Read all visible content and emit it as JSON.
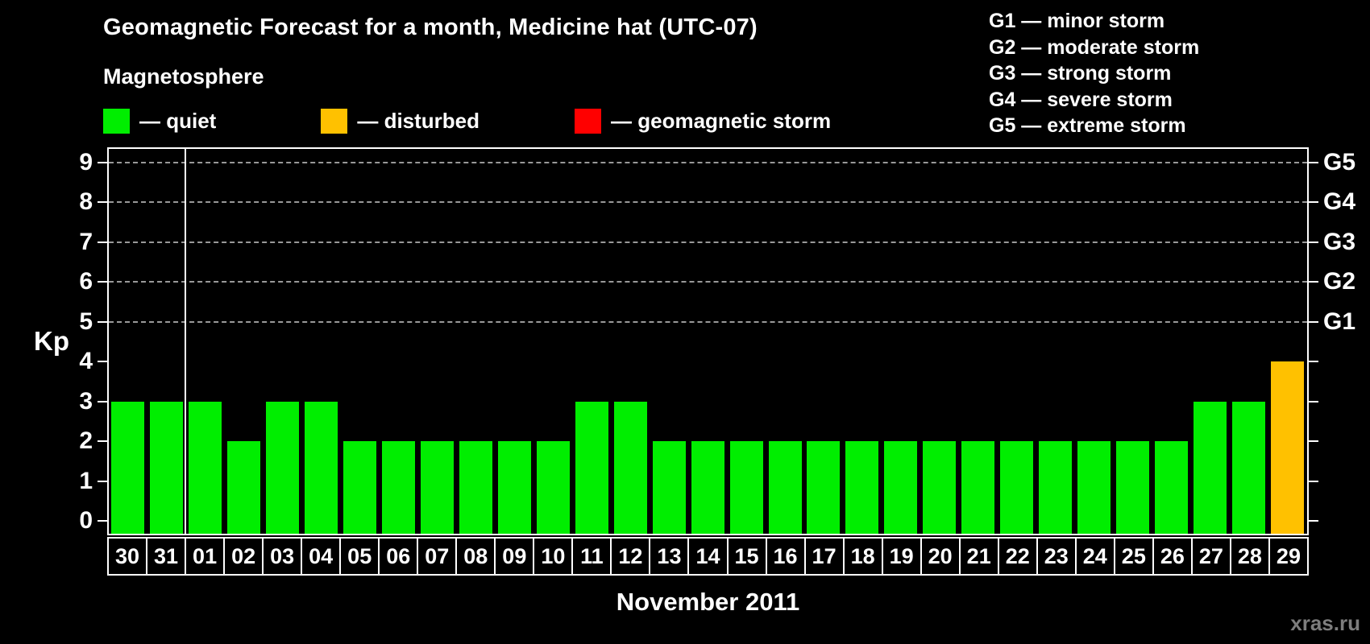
{
  "title": "Geomagnetic Forecast for a month, Medicine hat (UTC-07)",
  "subtitle": "Magnetosphere",
  "watermark": "xras.ru",
  "colors": {
    "background": "#000000",
    "quiet": "#00ee00",
    "disturbed": "#ffc100",
    "storm": "#ff0000",
    "grid": "#999999",
    "axis": "#ffffff"
  },
  "legend": [
    {
      "status": "quiet",
      "label": "— quiet"
    },
    {
      "status": "disturbed",
      "label": "— disturbed"
    },
    {
      "status": "storm",
      "label": "— geomagnetic storm"
    }
  ],
  "storm_scale": [
    {
      "code": "G1",
      "label": "minor storm"
    },
    {
      "code": "G2",
      "label": "moderate storm"
    },
    {
      "code": "G3",
      "label": "strong storm"
    },
    {
      "code": "G4",
      "label": "severe storm"
    },
    {
      "code": "G5",
      "label": "extreme storm"
    }
  ],
  "chart_data": {
    "type": "bar",
    "title": "Geomagnetic Forecast for a month, Medicine hat (UTC-07)",
    "xlabel": "November 2011",
    "ylabel": "Kp",
    "ylim": [
      0,
      9
    ],
    "yticks": [
      0,
      1,
      2,
      3,
      4,
      5,
      6,
      7,
      8,
      9
    ],
    "grid": "horizontal dashed lines at Kp 5-9",
    "legend_position": "top",
    "categories": [
      "30",
      "31",
      "01",
      "02",
      "03",
      "04",
      "05",
      "06",
      "07",
      "08",
      "09",
      "10",
      "11",
      "12",
      "13",
      "14",
      "15",
      "16",
      "17",
      "18",
      "19",
      "20",
      "21",
      "22",
      "23",
      "24",
      "25",
      "26",
      "27",
      "28",
      "29"
    ],
    "values": [
      3,
      3,
      3,
      2,
      3,
      3,
      2,
      2,
      2,
      2,
      2,
      2,
      3,
      3,
      2,
      2,
      2,
      2,
      2,
      2,
      2,
      2,
      2,
      2,
      2,
      2,
      2,
      2,
      3,
      3,
      4
    ],
    "statuses": [
      "quiet",
      "quiet",
      "quiet",
      "quiet",
      "quiet",
      "quiet",
      "quiet",
      "quiet",
      "quiet",
      "quiet",
      "quiet",
      "quiet",
      "quiet",
      "quiet",
      "quiet",
      "quiet",
      "quiet",
      "quiet",
      "quiet",
      "quiet",
      "quiet",
      "quiet",
      "quiet",
      "quiet",
      "quiet",
      "quiet",
      "quiet",
      "quiet",
      "quiet",
      "quiet",
      "disturbed"
    ],
    "right_axis": [
      {
        "label": "G1",
        "kp": 5
      },
      {
        "label": "G2",
        "kp": 6
      },
      {
        "label": "G3",
        "kp": 7
      },
      {
        "label": "G4",
        "kp": 8
      },
      {
        "label": "G5",
        "kp": 9
      }
    ],
    "month_separator_after_index": 1
  }
}
